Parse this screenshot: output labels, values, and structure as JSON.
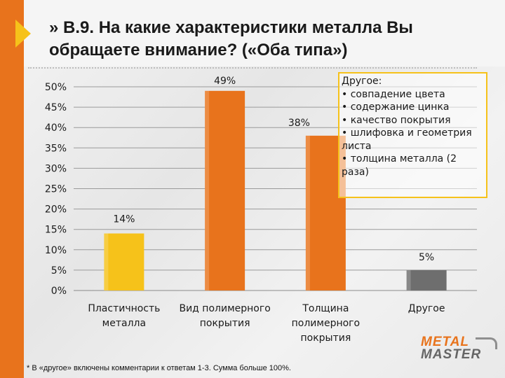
{
  "title": "» В.9. На какие характеристики металла Вы обращаете внимание? («Оба типа»)",
  "other_box": {
    "heading": "Другое:",
    "lines": [
      "• совпадение цвета",
      "• содержание цинка",
      "• качество покрытия",
      "• шлифовка и геометрия",
      "листа",
      "• толщина металла (2",
      "раза)"
    ]
  },
  "footnote": "* В «другое» включены комментарии к ответам 1-3. Сумма больше 100%.",
  "logo": {
    "top": "METAL",
    "bottom": "MASTER"
  },
  "colors": {
    "accent": "#e8731c",
    "yellow": "#f6c21a",
    "gray_bar": "#6e6e6e"
  },
  "chart_data": {
    "type": "bar",
    "categories": [
      [
        "Пластичность",
        "металла"
      ],
      [
        "Вид полимерного",
        "покрытия"
      ],
      [
        "Толщина",
        "полимерного",
        "покрытия"
      ],
      [
        "Другое"
      ]
    ],
    "values": [
      14,
      49,
      38,
      5
    ],
    "data_labels": [
      "14%",
      "49%",
      "38%",
      "5%"
    ],
    "bar_colors": [
      "#f6c21a",
      "#e8731c",
      "#e8731c",
      "#6e6e6e"
    ],
    "ylim": [
      0,
      50
    ],
    "yticks": [
      "0%",
      "5%",
      "10%",
      "15%",
      "20%",
      "25%",
      "30%",
      "35%",
      "40%",
      "45%",
      "50%"
    ],
    "ytick_values": [
      0,
      5,
      10,
      15,
      20,
      25,
      30,
      35,
      40,
      45,
      50
    ],
    "grid": true
  }
}
